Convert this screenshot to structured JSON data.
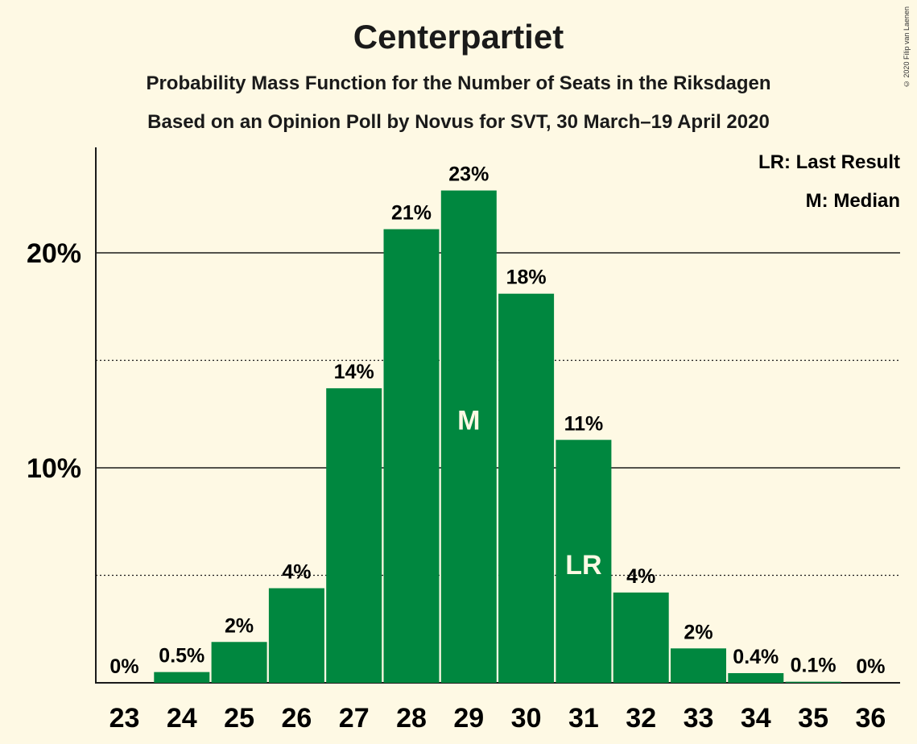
{
  "header": {
    "title": "Centerpartiet",
    "subtitle_1": "Probability Mass Function for the Number of Seats in the Riksdagen",
    "subtitle_2": "Based on an Opinion Poll by Novus for SVT, 30 March–19 April 2020",
    "copyright": "© 2020 Filip van Laenen"
  },
  "legend": {
    "last_result": "LR: Last Result",
    "median": "M: Median"
  },
  "colors": {
    "bar": "#00873F",
    "background": "#FEF9E4",
    "marker_text": "#FEF9E4"
  },
  "chart_data": {
    "type": "bar",
    "categories": [
      "23",
      "24",
      "25",
      "26",
      "27",
      "28",
      "29",
      "30",
      "31",
      "32",
      "33",
      "34",
      "35",
      "36"
    ],
    "values": [
      0,
      0.5,
      1.9,
      4.4,
      13.7,
      21.1,
      22.9,
      18.1,
      11.3,
      4.2,
      1.6,
      0.45,
      0.05,
      0
    ],
    "value_labels": [
      "0%",
      "0.5%",
      "2%",
      "4%",
      "14%",
      "21%",
      "23%",
      "18%",
      "11%",
      "4%",
      "2%",
      "0.4%",
      "0.1%",
      "0%"
    ],
    "y_ticks": [
      {
        "value": 10,
        "label": "10%"
      },
      {
        "value": 20,
        "label": "20%"
      }
    ],
    "dotted_gridlines": [
      5,
      15
    ],
    "ylim": [
      0,
      25
    ],
    "median": {
      "category": "29",
      "label": "M"
    },
    "last_result": {
      "category": "31",
      "label": "LR"
    },
    "legend_position": "top-right"
  }
}
